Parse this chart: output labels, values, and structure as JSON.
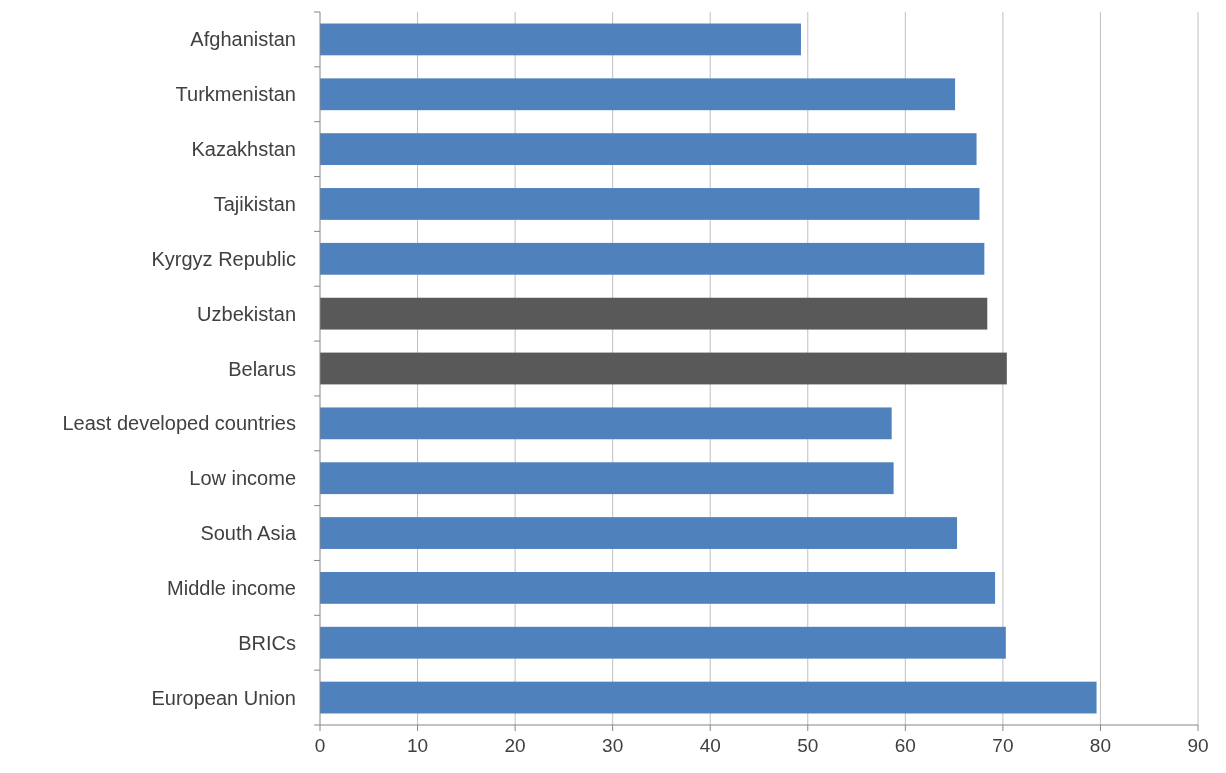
{
  "chart_data": {
    "type": "bar",
    "orientation": "horizontal",
    "categories": [
      "Afghanistan",
      "Turkmenistan",
      "Kazakhstan",
      "Tajikistan",
      "Kyrgyz Republic",
      "Uzbekistan",
      "Belarus",
      "Least developed countries",
      "Low income",
      "South Asia",
      "Middle income",
      "BRICs",
      "European Union"
    ],
    "values": [
      49.3,
      65.1,
      67.3,
      67.6,
      68.1,
      68.4,
      70.4,
      58.6,
      58.8,
      65.3,
      69.2,
      70.3,
      79.6
    ],
    "colors": [
      "#4f81bd",
      "#4f81bd",
      "#4f81bd",
      "#4f81bd",
      "#4f81bd",
      "#595959",
      "#595959",
      "#4f81bd",
      "#4f81bd",
      "#4f81bd",
      "#4f81bd",
      "#4f81bd",
      "#4f81bd"
    ],
    "xlim": [
      0,
      90
    ],
    "xticks": [
      0,
      10,
      20,
      30,
      40,
      50,
      60,
      70,
      80,
      90
    ],
    "grid": "x"
  }
}
